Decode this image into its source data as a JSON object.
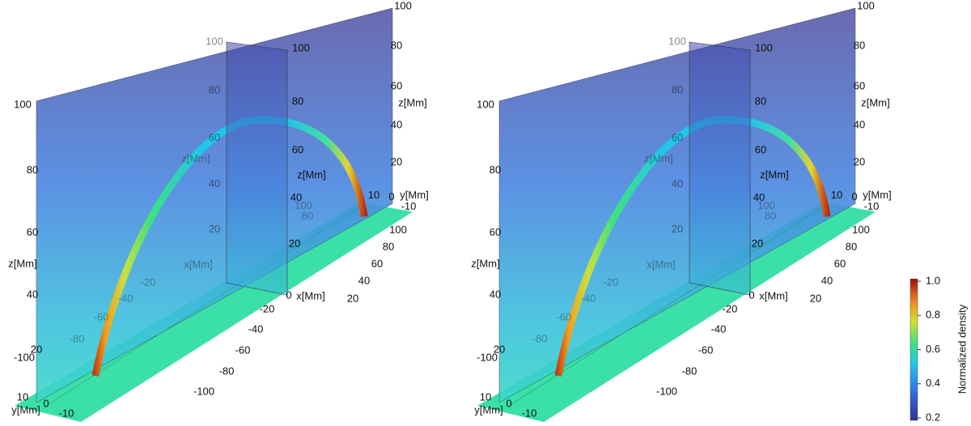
{
  "panels": [
    {
      "labels": [
        "100",
        "80",
        "60",
        "z[Mm]",
        "40",
        "20",
        "10",
        "0",
        "y[Mm]",
        "-10",
        "100",
        "100",
        "80",
        "80",
        "60",
        "60",
        "z[Mm]",
        "z[Mm]",
        "40",
        "40",
        "20",
        "20",
        "x[Mm]",
        "0",
        "x[Mm]",
        "100",
        "80",
        "60",
        "40",
        "20",
        "-20",
        "-40",
        "-60",
        "-80",
        "-100",
        "100",
        "80",
        "60",
        "z[Mm]",
        "40",
        "20",
        "-100",
        "10",
        "0",
        "y[Mm]",
        "-10",
        "-80",
        "-60",
        "-40",
        "-20",
        "100",
        "80"
      ]
    },
    {
      "labels": [
        "100",
        "80",
        "60",
        "z[Mm]",
        "40",
        "20",
        "10",
        "0",
        "y[Mm]",
        "-10",
        "100",
        "100",
        "80",
        "80",
        "60",
        "60",
        "z[Mm]",
        "z[Mm]",
        "40",
        "40",
        "20",
        "20",
        "x[Mm]",
        "0",
        "x[Mm]",
        "100",
        "80",
        "60",
        "40",
        "20",
        "-20",
        "-40",
        "-60",
        "-80",
        "-100",
        "100",
        "80",
        "60",
        "z[Mm]",
        "40",
        "20",
        "-100",
        "10",
        "0",
        "y[Mm]",
        "-10",
        "-80",
        "-60",
        "-40",
        "-20",
        "100",
        "80"
      ]
    }
  ],
  "colorbar": {
    "title": "Normalized density",
    "ticks": [
      "1.0",
      "0.8",
      "0.6",
      "0.4",
      "0.2"
    ]
  }
}
